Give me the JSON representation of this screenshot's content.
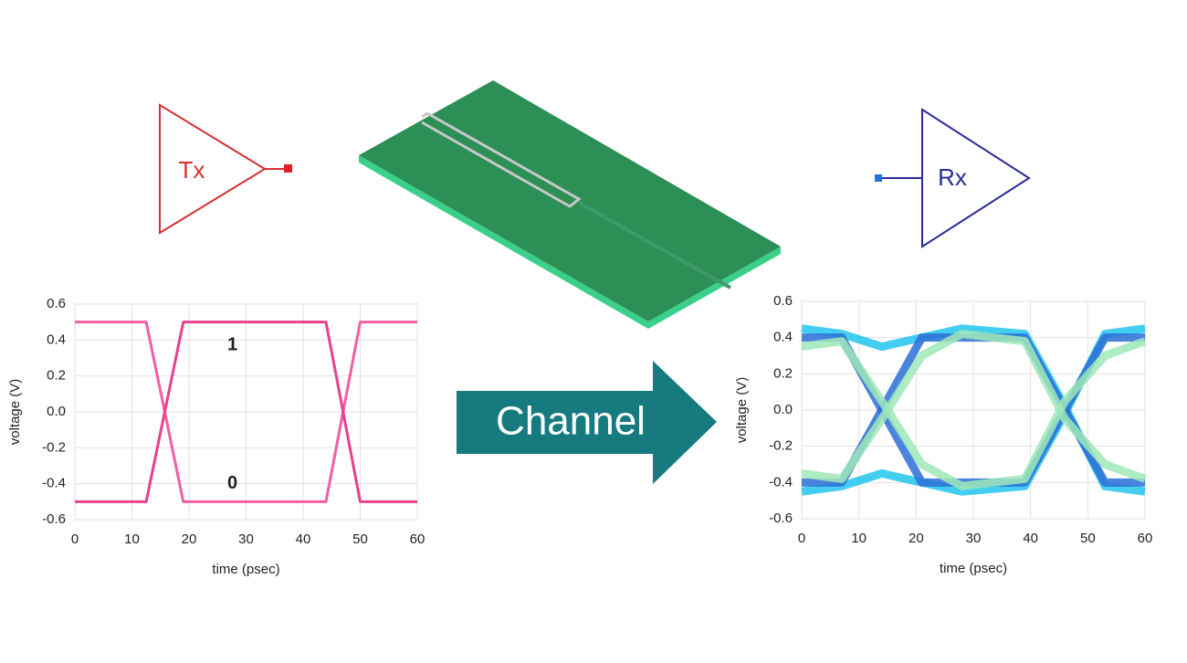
{
  "tx_label": "Tx",
  "rx_label": "Rx",
  "channel_label": "Channel",
  "chart_data": [
    {
      "type": "line",
      "xlabel": "time (psec)",
      "ylabel": "voltage (V)",
      "xlim": [
        0,
        60
      ],
      "ylim": [
        -0.6,
        0.6
      ],
      "xticks": [
        0,
        10,
        20,
        30,
        40,
        50,
        60
      ],
      "yticks": [
        -0.6,
        -0.4,
        -0.2,
        {
          "value": 0,
          "label": "0.0"
        },
        0.2,
        0.4,
        0.6
      ],
      "grid": true,
      "annotations": [
        {
          "text": "1",
          "x": 30,
          "y": 0.37
        },
        {
          "text": "0",
          "x": 30,
          "y": -0.4
        }
      ],
      "series": [
        {
          "color": "#f25ea6",
          "x": [
            0,
            12.5,
            19,
            44,
            50,
            60
          ],
          "values": [
            0.5,
            0.5,
            -0.5,
            -0.5,
            0.5,
            0.5
          ]
        },
        {
          "color": "#e8408e",
          "x": [
            0,
            12.5,
            19,
            44,
            50,
            60
          ],
          "values": [
            -0.5,
            -0.5,
            0.5,
            0.5,
            -0.5,
            -0.5
          ]
        }
      ]
    },
    {
      "type": "line",
      "xlabel": "time (psec)",
      "ylabel": "voltage (V)",
      "xlim": [
        0,
        60
      ],
      "ylim": [
        -0.6,
        0.6
      ],
      "xticks": [
        0,
        10,
        20,
        30,
        40,
        50,
        60
      ],
      "yticks": [
        -0.6,
        -0.4,
        -0.2,
        {
          "value": 0,
          "label": "0.0"
        },
        0.2,
        0.4,
        0.6
      ],
      "grid": true,
      "series": [
        {
          "color": "#22c4ee",
          "x": [
            0,
            7,
            14,
            21,
            28,
            39,
            46,
            53,
            60
          ],
          "values": [
            0.45,
            0.42,
            0.35,
            0.4,
            0.45,
            0.42,
            0.02,
            -0.42,
            -0.45
          ]
        },
        {
          "color": "#22c4ee",
          "x": [
            0,
            7,
            14,
            21,
            28,
            39,
            46,
            53,
            60
          ],
          "values": [
            -0.45,
            -0.42,
            -0.35,
            -0.4,
            -0.45,
            -0.42,
            -0.02,
            0.42,
            0.45
          ]
        },
        {
          "color": "#2a6fd6",
          "x": [
            0,
            7,
            14,
            21,
            28,
            39,
            46,
            53,
            60
          ],
          "values": [
            0.4,
            0.4,
            0,
            -0.4,
            -0.4,
            -0.4,
            0,
            0.4,
            0.4
          ]
        },
        {
          "color": "#2a6fd6",
          "x": [
            0,
            7,
            14,
            21,
            28,
            39,
            46,
            53,
            60
          ],
          "values": [
            -0.4,
            -0.4,
            0,
            0.4,
            0.4,
            0.4,
            0,
            -0.4,
            -0.4
          ]
        },
        {
          "color": "#9fe8b8",
          "x": [
            0,
            7,
            14,
            21,
            28,
            39,
            46,
            53,
            60
          ],
          "values": [
            0.35,
            0.38,
            0.05,
            -0.3,
            -0.42,
            -0.38,
            0.05,
            0.3,
            0.38
          ]
        },
        {
          "color": "#9fe8b8",
          "x": [
            0,
            7,
            14,
            21,
            28,
            39,
            46,
            53,
            60
          ],
          "values": [
            -0.35,
            -0.38,
            -0.05,
            0.3,
            0.42,
            0.38,
            -0.05,
            -0.3,
            -0.38
          ]
        }
      ]
    }
  ]
}
